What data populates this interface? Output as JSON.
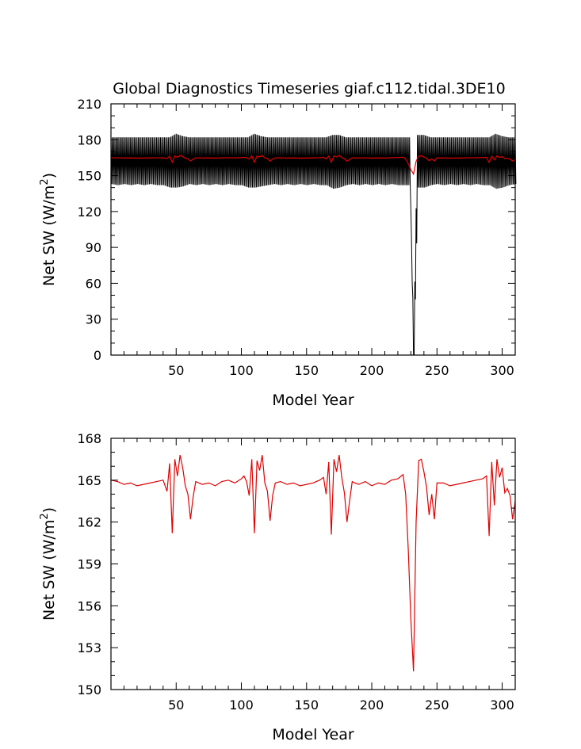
{
  "chart_data": [
    {
      "type": "line",
      "title": "Global Diagnostics Timeseries giaf.c112.tidal.3DE10",
      "xlabel": "Model Year",
      "ylabel": "Net SW (W/m",
      "ylabel_sup": "2",
      "ylabel_close": ")",
      "xlim": [
        0,
        310
      ],
      "ylim": [
        0,
        210
      ],
      "xticks": [
        50,
        100,
        150,
        200,
        250,
        300
      ],
      "yticks": [
        0,
        30,
        60,
        90,
        120,
        150,
        180,
        210
      ],
      "grid": false,
      "series": [
        {
          "color": "#000000",
          "style": "monthly-oscillation",
          "x": [
            0,
            5,
            10,
            15,
            20,
            25,
            30,
            35,
            40,
            45,
            50,
            55,
            60,
            65,
            70,
            75,
            80,
            85,
            90,
            95,
            100,
            105,
            110,
            115,
            120,
            125,
            130,
            135,
            140,
            145,
            150,
            155,
            160,
            165,
            170,
            175,
            180,
            185,
            190,
            195,
            200,
            205,
            210,
            215,
            220,
            225,
            229,
            232,
            235,
            240,
            245,
            250,
            255,
            260,
            265,
            270,
            275,
            280,
            285,
            290,
            295,
            300,
            305,
            310
          ],
          "upper": [
            182,
            182,
            182,
            182,
            182,
            182,
            182,
            182,
            182,
            182,
            185,
            183,
            182,
            182,
            182,
            182,
            182,
            182,
            182,
            182,
            182,
            182,
            185,
            183,
            182,
            182,
            182,
            182,
            182,
            182,
            182,
            182,
            182,
            182,
            184,
            184,
            182,
            182,
            182,
            182,
            182,
            182,
            182,
            182,
            182,
            182,
            182,
            0,
            184,
            184,
            182,
            182,
            182,
            182,
            182,
            182,
            182,
            182,
            182,
            182,
            185,
            183,
            182,
            182
          ],
          "lower": [
            143,
            142,
            143,
            142,
            143,
            142,
            143,
            142,
            142,
            140,
            140,
            141,
            143,
            142,
            143,
            142,
            143,
            142,
            143,
            142,
            142,
            140,
            140,
            141,
            142,
            143,
            142,
            143,
            142,
            143,
            142,
            143,
            142,
            142,
            139,
            140,
            142,
            143,
            142,
            143,
            142,
            143,
            142,
            143,
            142,
            142,
            142,
            0,
            140,
            140,
            142,
            143,
            142,
            143,
            142,
            143,
            142,
            143,
            142,
            142,
            139,
            140,
            142,
            143
          ]
        },
        {
          "color": "#e00000",
          "style": "annual-mean",
          "x": [
            0,
            5,
            10,
            15,
            20,
            25,
            30,
            35,
            40,
            43,
            45,
            47,
            49,
            51,
            53,
            55,
            57,
            59,
            61,
            63,
            65,
            70,
            75,
            80,
            85,
            90,
            95,
            100,
            102,
            104,
            106,
            108,
            110,
            112,
            114,
            116,
            118,
            120,
            122,
            124,
            126,
            130,
            135,
            140,
            145,
            150,
            155,
            160,
            163,
            165,
            167,
            169,
            171,
            173,
            175,
            177,
            179,
            181,
            183,
            185,
            187,
            190,
            195,
            200,
            205,
            210,
            215,
            220,
            224,
            226,
            228,
            230,
            232,
            234,
            236,
            238,
            240,
            242,
            244,
            246,
            248,
            250,
            255,
            260,
            265,
            270,
            275,
            280,
            285,
            288,
            290,
            292,
            294,
            296,
            298,
            300,
            302,
            304,
            306,
            308,
            310
          ],
          "y": [
            165.0,
            164.9,
            164.7,
            164.8,
            164.6,
            164.7,
            164.8,
            164.9,
            165.0,
            164.2,
            166.2,
            161.2,
            166.5,
            165.3,
            166.8,
            165.9,
            164.6,
            164.0,
            162.2,
            163.8,
            164.9,
            164.7,
            164.8,
            164.6,
            164.9,
            165.0,
            164.8,
            165.1,
            165.3,
            164.9,
            163.9,
            166.5,
            161.2,
            166.4,
            165.7,
            166.8,
            164.8,
            164.2,
            162.1,
            163.9,
            164.8,
            164.9,
            164.7,
            164.8,
            164.6,
            164.7,
            164.8,
            165.0,
            165.2,
            164.0,
            166.3,
            161.1,
            166.5,
            165.6,
            166.8,
            165.2,
            164.1,
            162.0,
            163.5,
            164.9,
            164.8,
            164.7,
            164.9,
            164.6,
            164.8,
            164.7,
            165.0,
            165.1,
            165.4,
            164.0,
            160.0,
            155.0,
            151.3,
            162.0,
            166.4,
            166.5,
            165.6,
            164.5,
            162.5,
            164.0,
            162.2,
            164.8,
            164.8,
            164.6,
            164.7,
            164.8,
            164.9,
            165.0,
            165.1,
            165.3,
            161.0,
            166.3,
            163.2,
            166.5,
            165.2,
            165.9,
            164.1,
            164.4,
            163.9,
            162.2,
            163.5
          ]
        }
      ]
    },
    {
      "type": "line",
      "title": "",
      "xlabel": "Model Year",
      "ylabel": "Net SW (W/m",
      "ylabel_sup": "2",
      "ylabel_close": ")",
      "xlim": [
        0,
        310
      ],
      "ylim": [
        150,
        168
      ],
      "xticks": [
        50,
        100,
        150,
        200,
        250,
        300
      ],
      "yticks": [
        150,
        153,
        156,
        159,
        162,
        165,
        168
      ],
      "grid": false,
      "series": [
        {
          "color": "#e00000",
          "style": "annual-mean",
          "x": [
            0,
            5,
            10,
            15,
            20,
            25,
            30,
            35,
            40,
            43,
            45,
            47,
            49,
            51,
            53,
            55,
            57,
            59,
            61,
            63,
            65,
            70,
            75,
            80,
            85,
            90,
            95,
            100,
            102,
            104,
            106,
            108,
            110,
            112,
            114,
            116,
            118,
            120,
            122,
            124,
            126,
            130,
            135,
            140,
            145,
            150,
            155,
            160,
            163,
            165,
            167,
            169,
            171,
            173,
            175,
            177,
            179,
            181,
            183,
            185,
            187,
            190,
            195,
            200,
            205,
            210,
            215,
            220,
            224,
            226,
            228,
            230,
            232,
            234,
            236,
            238,
            240,
            242,
            244,
            246,
            248,
            250,
            255,
            260,
            265,
            270,
            275,
            280,
            285,
            288,
            290,
            292,
            294,
            296,
            298,
            300,
            302,
            304,
            306,
            308,
            310
          ],
          "y": [
            165.0,
            164.9,
            164.7,
            164.8,
            164.6,
            164.7,
            164.8,
            164.9,
            165.0,
            164.2,
            166.2,
            161.2,
            166.5,
            165.3,
            166.8,
            165.9,
            164.6,
            164.0,
            162.2,
            163.8,
            164.9,
            164.7,
            164.8,
            164.6,
            164.9,
            165.0,
            164.8,
            165.1,
            165.3,
            164.9,
            163.9,
            166.5,
            161.2,
            166.4,
            165.7,
            166.8,
            164.8,
            164.2,
            162.1,
            163.9,
            164.8,
            164.9,
            164.7,
            164.8,
            164.6,
            164.7,
            164.8,
            165.0,
            165.2,
            164.0,
            166.3,
            161.1,
            166.5,
            165.6,
            166.8,
            165.2,
            164.1,
            162.0,
            163.5,
            164.9,
            164.8,
            164.7,
            164.9,
            164.6,
            164.8,
            164.7,
            165.0,
            165.1,
            165.4,
            164.0,
            160.0,
            155.0,
            151.3,
            162.0,
            166.4,
            166.5,
            165.6,
            164.5,
            162.5,
            164.0,
            162.2,
            164.8,
            164.8,
            164.6,
            164.7,
            164.8,
            164.9,
            165.0,
            165.1,
            165.3,
            161.0,
            166.3,
            163.2,
            166.5,
            165.2,
            165.9,
            164.1,
            164.4,
            163.9,
            162.2,
            163.5
          ]
        }
      ]
    }
  ]
}
